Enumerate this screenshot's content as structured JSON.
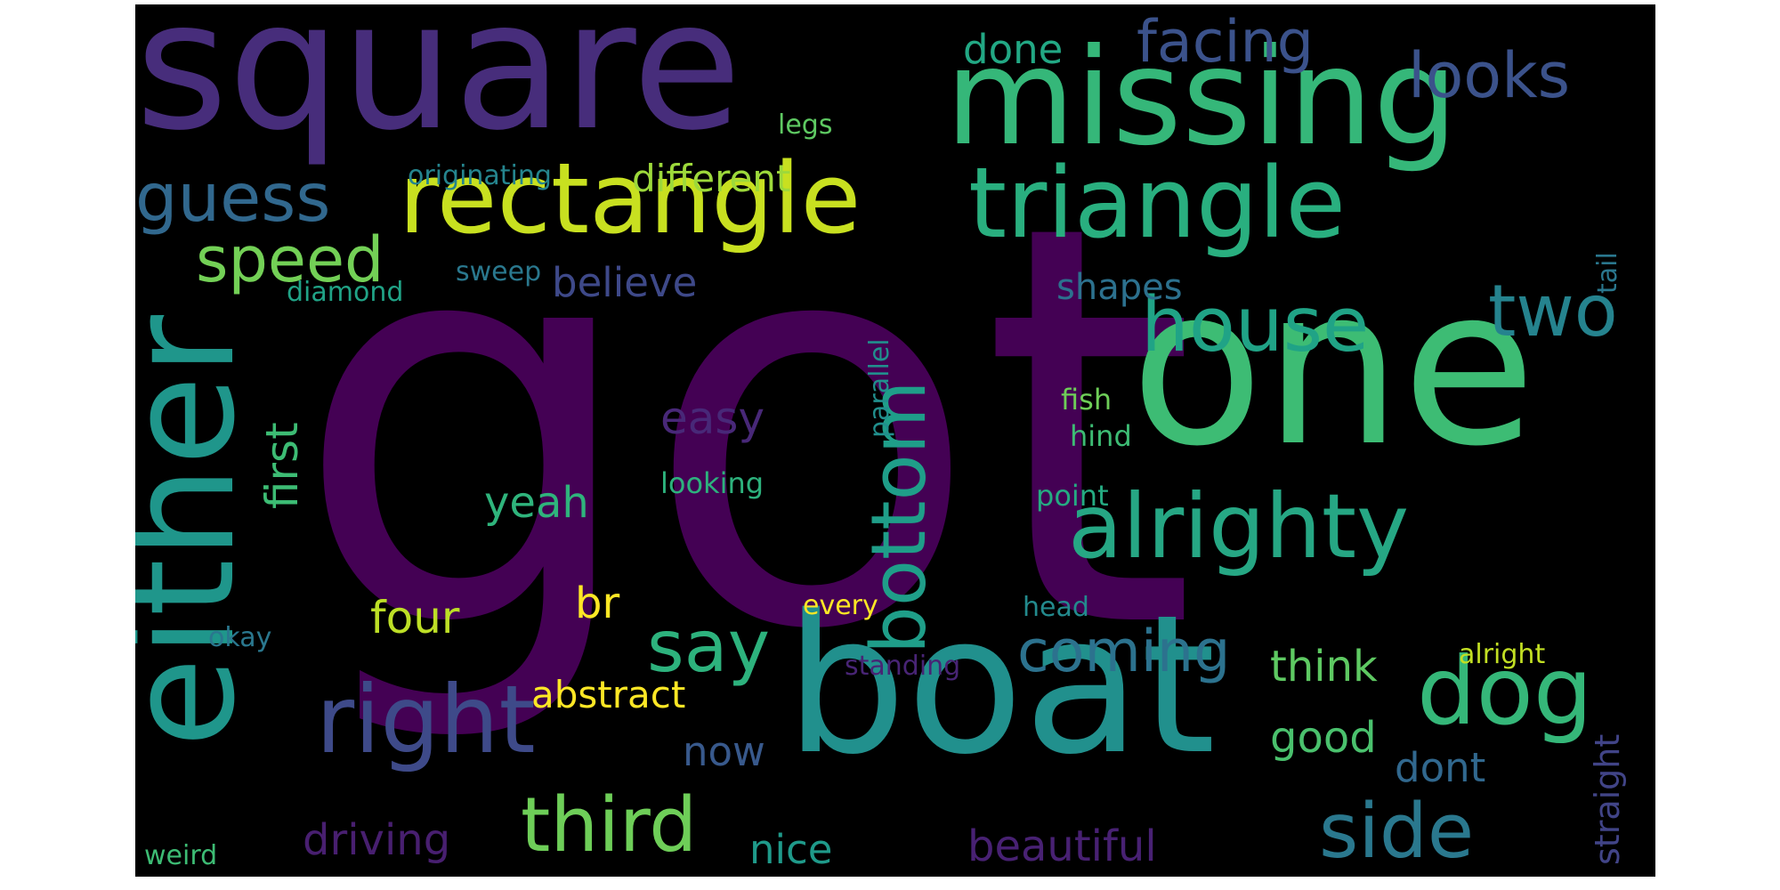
{
  "words": [
    {
      "text": "got",
      "color": "#440154",
      "size": 620,
      "vertical": false
    },
    {
      "text": "one",
      "color": "#3dbc74",
      "size": 245,
      "vertical": false
    },
    {
      "text": "boat",
      "color": "#21908d",
      "size": 215,
      "vertical": false
    },
    {
      "text": "square",
      "color": "#472d7b",
      "size": 200,
      "vertical": false
    },
    {
      "text": "missing",
      "color": "#35b779",
      "size": 150,
      "vertical": false
    },
    {
      "text": "either",
      "color": "#1f968b",
      "size": 165,
      "vertical": true
    },
    {
      "text": "rectangle",
      "color": "#c8e020",
      "size": 110,
      "vertical": false
    },
    {
      "text": "triangle",
      "color": "#29af7f",
      "size": 110,
      "vertical": false
    },
    {
      "text": "alrighty",
      "color": "#26a784",
      "size": 100,
      "vertical": false
    },
    {
      "text": "right",
      "color": "#3e4a89",
      "size": 105,
      "vertical": false
    },
    {
      "text": "dog",
      "color": "#35b779",
      "size": 105,
      "vertical": false
    },
    {
      "text": "bottom",
      "color": "#1f9e89",
      "size": 85,
      "vertical": true
    },
    {
      "text": "house",
      "color": "#20a386",
      "size": 85,
      "vertical": false
    },
    {
      "text": "two",
      "color": "#25838e",
      "size": 80,
      "vertical": false
    },
    {
      "text": "third",
      "color": "#6ece58",
      "size": 85,
      "vertical": false
    },
    {
      "text": "side",
      "color": "#2a788e",
      "size": 85,
      "vertical": false
    },
    {
      "text": "say",
      "color": "#2db27d",
      "size": 80,
      "vertical": false
    },
    {
      "text": "guess",
      "color": "#31688e",
      "size": 75,
      "vertical": false
    },
    {
      "text": "speed",
      "color": "#73d056",
      "size": 70,
      "vertical": false
    },
    {
      "text": "looks",
      "color": "#3b528b",
      "size": 70,
      "vertical": false
    },
    {
      "text": "facing",
      "color": "#3b528b",
      "size": 65,
      "vertical": false
    },
    {
      "text": "coming",
      "color": "#2c728e",
      "size": 65,
      "vertical": false
    },
    {
      "text": "done",
      "color": "#22a884",
      "size": 45,
      "vertical": false
    },
    {
      "text": "different",
      "color": "#9dd93b",
      "size": 42,
      "vertical": false
    },
    {
      "text": "believe",
      "color": "#3e4989",
      "size": 45,
      "vertical": false
    },
    {
      "text": "shapes",
      "color": "#2c718e",
      "size": 40,
      "vertical": false
    },
    {
      "text": "easy",
      "color": "#482878",
      "size": 50,
      "vertical": false
    },
    {
      "text": "first",
      "color": "#3dbc74",
      "size": 50,
      "vertical": true
    },
    {
      "text": "yeah",
      "color": "#2fb47c",
      "size": 48,
      "vertical": false
    },
    {
      "text": "four",
      "color": "#bddf26",
      "size": 50,
      "vertical": false
    },
    {
      "text": "br",
      "color": "#fde725",
      "size": 48,
      "vertical": false
    },
    {
      "text": "think",
      "color": "#5ec962",
      "size": 48,
      "vertical": false
    },
    {
      "text": "good",
      "color": "#4ac16d",
      "size": 48,
      "vertical": false
    },
    {
      "text": "dont",
      "color": "#31688e",
      "size": 45,
      "vertical": false
    },
    {
      "text": "abstract",
      "color": "#fde725",
      "size": 42,
      "vertical": false
    },
    {
      "text": "now",
      "color": "#38598c",
      "size": 45,
      "vertical": false
    },
    {
      "text": "driving",
      "color": "#481f70",
      "size": 48,
      "vertical": false
    },
    {
      "text": "nice",
      "color": "#1f9a8a",
      "size": 45,
      "vertical": false
    },
    {
      "text": "beautiful",
      "color": "#482173",
      "size": 48,
      "vertical": false
    },
    {
      "text": "straight",
      "color": "#414487",
      "size": 38,
      "vertical": true
    },
    {
      "text": "originating",
      "color": "#25858e",
      "size": 30,
      "vertical": false
    },
    {
      "text": "legs",
      "color": "#5ec962",
      "size": 30,
      "vertical": false
    },
    {
      "text": "diamond",
      "color": "#20a386",
      "size": 30,
      "vertical": false
    },
    {
      "text": "sweep",
      "color": "#2a788e",
      "size": 30,
      "vertical": false
    },
    {
      "text": "parallel",
      "color": "#218f8d",
      "size": 30,
      "vertical": true
    },
    {
      "text": "tail",
      "color": "#2a778e",
      "size": 30,
      "vertical": true
    },
    {
      "text": "fish",
      "color": "#6ece58",
      "size": 32,
      "vertical": false
    },
    {
      "text": "hind",
      "color": "#3dbc74",
      "size": 32,
      "vertical": false
    },
    {
      "text": "point",
      "color": "#25ab82",
      "size": 32,
      "vertical": false
    },
    {
      "text": "looking",
      "color": "#2db27d",
      "size": 32,
      "vertical": false
    },
    {
      "text": "every",
      "color": "#fde725",
      "size": 30,
      "vertical": false
    },
    {
      "text": "head",
      "color": "#238a8d",
      "size": 30,
      "vertical": false
    },
    {
      "text": "okay",
      "color": "#2a778e",
      "size": 30,
      "vertical": false
    },
    {
      "text": "standing",
      "color": "#482475",
      "size": 30,
      "vertical": false
    },
    {
      "text": "alright",
      "color": "#c2df23",
      "size": 30,
      "vertical": false
    },
    {
      "text": "weird",
      "color": "#3dbc74",
      "size": 30,
      "vertical": false
    }
  ]
}
